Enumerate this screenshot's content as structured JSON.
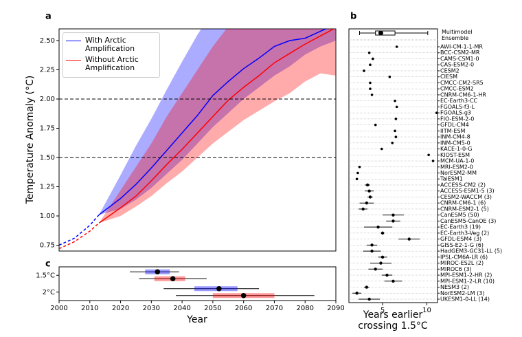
{
  "chart_data": [
    {
      "type": "line",
      "panel": "a",
      "ylabel": "Temperature Anomaly (°C)",
      "xlim": [
        2000,
        2090
      ],
      "ylim": [
        0.7,
        2.6
      ],
      "yticks": [
        {
          "value": 0.75,
          "label": "0.75"
        },
        {
          "value": 1.0,
          "label": "1.00"
        },
        {
          "value": 1.25,
          "label": "1.25"
        },
        {
          "value": 1.5,
          "label": "1.50"
        },
        {
          "value": 1.75,
          "label": "1.75"
        },
        {
          "value": 2.0,
          "label": "2.00"
        },
        {
          "value": 2.25,
          "label": "2.25"
        },
        {
          "value": 2.5,
          "label": "2.50"
        }
      ],
      "hlines": [
        1.5,
        2.0
      ],
      "series": [
        {
          "name": "With Arctic Amplification",
          "color": "#0000ff",
          "x": [
            2013,
            2020,
            2025,
            2030,
            2035,
            2040,
            2045,
            2050,
            2055,
            2060,
            2065,
            2070,
            2075,
            2080,
            2085,
            2090
          ],
          "values": [
            1.01,
            1.15,
            1.27,
            1.41,
            1.56,
            1.71,
            1.86,
            2.03,
            2.15,
            2.26,
            2.35,
            2.45,
            2.5,
            2.52,
            2.58,
            2.64
          ],
          "lower": [
            1.01,
            1.06,
            1.14,
            1.24,
            1.36,
            1.48,
            1.62,
            1.76,
            1.88,
            2.0,
            2.1,
            2.2,
            2.28,
            2.38,
            2.45,
            2.5
          ],
          "upper": [
            1.01,
            1.35,
            1.6,
            1.83,
            2.08,
            2.32,
            2.55,
            2.75,
            2.9,
            3.0,
            3.1,
            3.2,
            3.3,
            3.4,
            3.5,
            3.6
          ]
        },
        {
          "name": "Without Arctic Amplification",
          "color": "#ff0000",
          "x": [
            2013,
            2020,
            2025,
            2030,
            2035,
            2040,
            2045,
            2050,
            2055,
            2060,
            2065,
            2070,
            2075,
            2080,
            2085,
            2090
          ],
          "values": [
            0.94,
            1.07,
            1.17,
            1.3,
            1.44,
            1.57,
            1.71,
            1.85,
            1.99,
            2.1,
            2.2,
            2.31,
            2.39,
            2.47,
            2.54,
            2.61
          ],
          "lower": [
            0.94,
            1.0,
            1.08,
            1.17,
            1.28,
            1.38,
            1.5,
            1.62,
            1.72,
            1.82,
            1.9,
            1.98,
            2.05,
            2.15,
            2.22,
            2.2
          ],
          "upper": [
            0.94,
            1.22,
            1.42,
            1.62,
            1.85,
            2.05,
            2.25,
            2.45,
            2.62,
            2.75,
            2.85,
            2.95,
            3.05,
            3.15,
            3.25,
            3.35
          ]
        },
        {
          "color": "#0000ff",
          "style": "dashed",
          "x": [
            2000,
            2005,
            2010,
            2013
          ],
          "values": [
            0.75,
            0.81,
            0.92,
            1.01
          ]
        },
        {
          "color": "#ff0000",
          "style": "dashed",
          "x": [
            2000,
            2005,
            2010,
            2013
          ],
          "values": [
            0.72,
            0.78,
            0.87,
            0.94
          ]
        }
      ]
    },
    {
      "type": "dot",
      "panel": "b",
      "xlabel": "Years earlier crossing 1.5°C",
      "xlim": [
        1.2,
        11.2
      ],
      "xticks": [
        5,
        10
      ],
      "ensemble": {
        "label": "Multimodel Ensemble",
        "low": 2.4,
        "q1": 4.2,
        "median": 4.8,
        "q3": 6.4,
        "high": 10.1
      },
      "categories": [
        "AWI-CM-1-1-MR",
        "BCC-CSM2-MR",
        "CAMS-CSM1-0",
        "CAS-ESM2-0",
        "CESM2",
        "CIESM",
        "CMCC-CM2-SR5",
        "CMCC-ESM2",
        "CNRM-CM6-1-HR",
        "EC-Earth3-CC",
        "FGOALS-f3-L",
        "FGOALS-g3",
        "FIO-ESM-2-0",
        "GFDL-CM4",
        "IITM-ESM",
        "INM-CM4-8",
        "INM-CM5-0",
        "KACE-1-0-G",
        "KIOST-ESM",
        "MCM-UA-1-0",
        "MRI-ESM2-0",
        "NorESM2-MM",
        "TaiESM1",
        "ACCESS-CM2 (2)",
        "ACCESS-ESM1-5 (3)",
        "CESM2-WACCM (3)",
        "CNRM-CM6-1 (6)",
        "CNRM-ESM2-1 (5)",
        "CanESM5 (50)",
        "CanESM5-CanOE (3)",
        "EC-Earth3 (19)",
        "EC-Earth3-Veg (2)",
        "GFDL-ESM4 (3)",
        "GISS-E2-1-G (6)",
        "HadGEM3-GC31-LL (5)",
        "IPSL-CM6A-LR (6)",
        "MIROC-ES2L (2)",
        "MIROC6 (3)",
        "MPI-ESM1-2-HR (2)",
        "MPI-ESM1-2-LR (10)",
        "NESM3 (2)",
        "NorESM2-LM (3)",
        "UKESM1-0-LL (14)"
      ],
      "values": [
        6.6,
        3.5,
        3.9,
        3.6,
        2.9,
        5.8,
        3.6,
        3.6,
        3.8,
        6.4,
        6.6,
        11.1,
        6.5,
        4.2,
        6.4,
        6.5,
        6.1,
        4.9,
        10.2,
        10.7,
        2.4,
        2.2,
        2.1,
        3.3,
        3.5,
        3.6,
        3.2,
        2.8,
        6.2,
        6.2,
        4.5,
        5.0,
        8.0,
        3.8,
        3.8,
        5.0,
        4.8,
        4.2,
        5.5,
        6.2,
        3.2,
        2.1,
        3.5
      ],
      "errors": [
        null,
        null,
        null,
        null,
        null,
        null,
        null,
        null,
        null,
        null,
        null,
        null,
        null,
        null,
        null,
        null,
        null,
        null,
        null,
        null,
        null,
        null,
        null,
        0.3,
        0.5,
        0.3,
        0.8,
        0.5,
        1.2,
        0.8,
        1.6,
        0.2,
        1.2,
        0.6,
        1.0,
        0.5,
        1.2,
        0.8,
        0.6,
        1.0,
        0.3,
        0.5,
        1.2
      ]
    },
    {
      "type": "box",
      "panel": "c",
      "xlabel": "Year",
      "xlim": [
        2000,
        2090
      ],
      "xticks": [
        2000,
        2010,
        2020,
        2030,
        2040,
        2050,
        2060,
        2070,
        2080,
        2090
      ],
      "categories": [
        "1.5°C",
        "2°C"
      ],
      "series": [
        {
          "color": "#0000ff",
          "low": [
            2023,
            2034
          ],
          "q1": [
            2028,
            2044
          ],
          "mean": [
            2032,
            2052
          ],
          "q3": [
            2036,
            2058
          ],
          "high": [
            2039,
            2065
          ]
        },
        {
          "color": "#ff0000",
          "low": [
            2026,
            2038
          ],
          "q1": [
            2031,
            2050
          ],
          "mean": [
            2037,
            2060
          ],
          "q3": [
            2041,
            2070
          ],
          "high": [
            2048,
            2083
          ]
        }
      ]
    }
  ]
}
